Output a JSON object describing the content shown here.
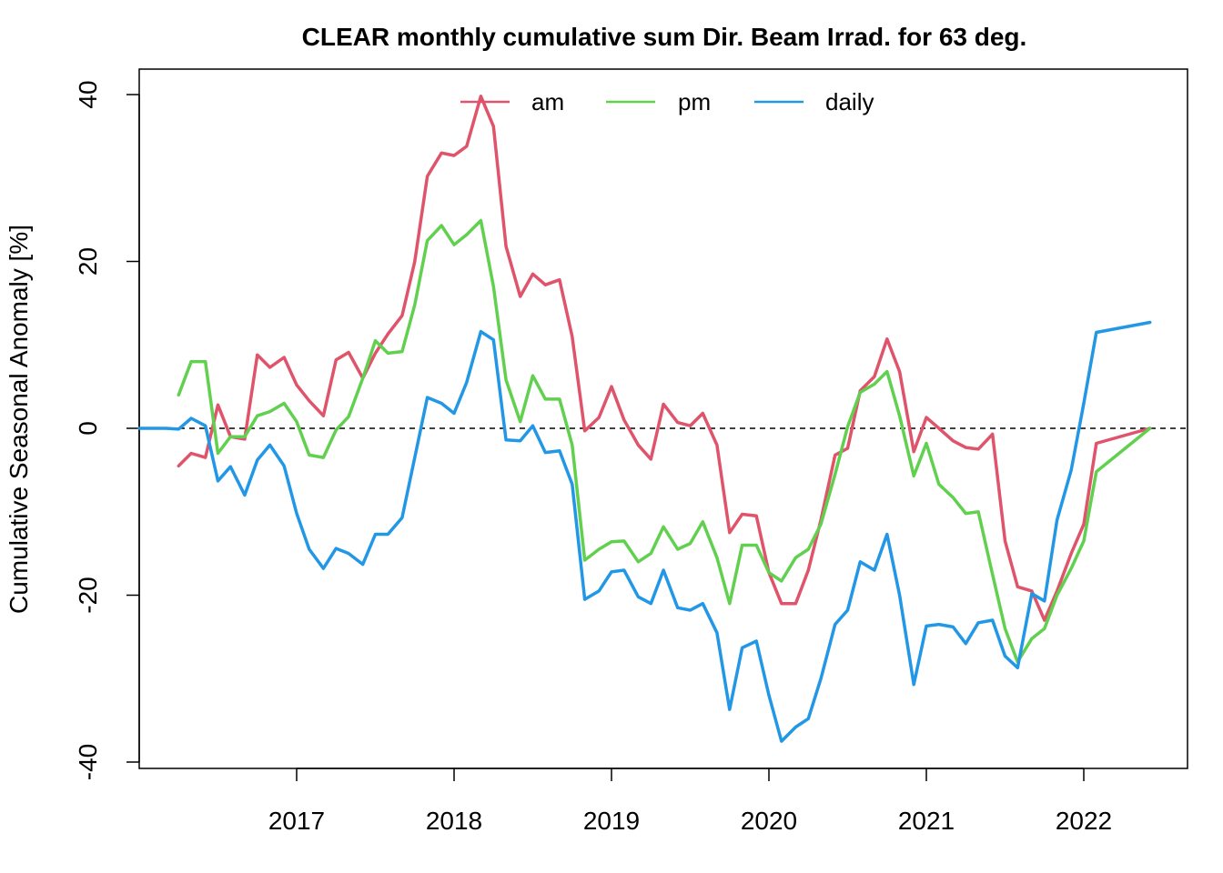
{
  "chart_data": {
    "type": "line",
    "title": "CLEAR monthly cumulative sum  Dir. Beam Irrad. for 63 deg.",
    "xlabel": "",
    "ylabel": "Cumulative Seasonal Anomaly [%]",
    "xlim": [
      2016.0,
      2022.67
    ],
    "ylim": [
      -40,
      40
    ],
    "x_ticks": [
      2017,
      2018,
      2019,
      2020,
      2021,
      2022
    ],
    "x_tick_labels": [
      "2017",
      "2018",
      "2019",
      "2020",
      "2021",
      "2022"
    ],
    "y_ticks": [
      -40,
      -20,
      0,
      20,
      40
    ],
    "y_tick_labels": [
      "-40",
      "-20",
      "0",
      "20",
      "40"
    ],
    "reference_line": {
      "y": 0,
      "style": "dashed"
    },
    "legend": {
      "position": "top",
      "orientation": "horizontal"
    },
    "series": [
      {
        "name": "am",
        "color": "#DF536B",
        "points": [
          [
            2016.25,
            -4.5
          ],
          [
            2016.33,
            -3.0
          ],
          [
            2016.42,
            -3.5
          ],
          [
            2016.5,
            2.8
          ],
          [
            2016.58,
            -1.0
          ],
          [
            2016.67,
            -1.3
          ],
          [
            2016.75,
            8.8
          ],
          [
            2016.83,
            7.3
          ],
          [
            2016.92,
            8.5
          ],
          [
            2017.0,
            5.2
          ],
          [
            2017.08,
            3.3
          ],
          [
            2017.17,
            1.5
          ],
          [
            2017.25,
            8.2
          ],
          [
            2017.33,
            9.1
          ],
          [
            2017.42,
            6.0
          ],
          [
            2017.5,
            9.0
          ],
          [
            2017.58,
            11.3
          ],
          [
            2017.67,
            13.5
          ],
          [
            2017.75,
            20.0
          ],
          [
            2017.83,
            30.2
          ],
          [
            2017.92,
            33.0
          ],
          [
            2018.0,
            32.7
          ],
          [
            2018.08,
            33.8
          ],
          [
            2018.17,
            39.8
          ],
          [
            2018.25,
            36.2
          ],
          [
            2018.33,
            21.8
          ],
          [
            2018.42,
            15.8
          ],
          [
            2018.5,
            18.5
          ],
          [
            2018.58,
            17.2
          ],
          [
            2018.67,
            17.8
          ],
          [
            2018.75,
            11.0
          ],
          [
            2018.83,
            -0.3
          ],
          [
            2018.92,
            1.3
          ],
          [
            2019.0,
            5.0
          ],
          [
            2019.08,
            1.0
          ],
          [
            2019.17,
            -2.0
          ],
          [
            2019.25,
            -3.7
          ],
          [
            2019.33,
            2.9
          ],
          [
            2019.42,
            0.7
          ],
          [
            2019.5,
            0.3
          ],
          [
            2019.58,
            1.8
          ],
          [
            2019.67,
            -2.0
          ],
          [
            2019.75,
            -12.5
          ],
          [
            2019.83,
            -10.3
          ],
          [
            2019.92,
            -10.5
          ],
          [
            2020.0,
            -17.3
          ],
          [
            2020.08,
            -21.0
          ],
          [
            2020.17,
            -21.0
          ],
          [
            2020.25,
            -17.0
          ],
          [
            2020.33,
            -11.0
          ],
          [
            2020.42,
            -3.2
          ],
          [
            2020.5,
            -2.4
          ],
          [
            2020.58,
            4.5
          ],
          [
            2020.67,
            6.2
          ],
          [
            2020.75,
            10.7
          ],
          [
            2020.83,
            6.8
          ],
          [
            2020.92,
            -2.8
          ],
          [
            2021.0,
            1.3
          ],
          [
            2021.08,
            0.0
          ],
          [
            2021.17,
            -1.5
          ],
          [
            2021.25,
            -2.3
          ],
          [
            2021.33,
            -2.5
          ],
          [
            2021.42,
            -0.7
          ],
          [
            2021.5,
            -13.5
          ],
          [
            2021.58,
            -19.0
          ],
          [
            2021.67,
            -19.5
          ],
          [
            2021.75,
            -23.0
          ],
          [
            2021.83,
            -19.5
          ],
          [
            2021.92,
            -15.0
          ],
          [
            2022.0,
            -11.5
          ],
          [
            2022.08,
            -1.8
          ],
          [
            2022.42,
            0.0
          ]
        ]
      },
      {
        "name": "pm",
        "color": "#61D04F",
        "points": [
          [
            2016.25,
            4.0
          ],
          [
            2016.33,
            8.0
          ],
          [
            2016.42,
            8.0
          ],
          [
            2016.5,
            -3.0
          ],
          [
            2016.58,
            -1.0
          ],
          [
            2016.67,
            -1.0
          ],
          [
            2016.75,
            1.5
          ],
          [
            2016.83,
            2.0
          ],
          [
            2016.92,
            3.0
          ],
          [
            2017.0,
            0.8
          ],
          [
            2017.08,
            -3.2
          ],
          [
            2017.17,
            -3.5
          ],
          [
            2017.25,
            -0.2
          ],
          [
            2017.33,
            1.4
          ],
          [
            2017.42,
            6.0
          ],
          [
            2017.5,
            10.5
          ],
          [
            2017.58,
            9.0
          ],
          [
            2017.67,
            9.2
          ],
          [
            2017.75,
            14.8
          ],
          [
            2017.83,
            22.5
          ],
          [
            2017.92,
            24.3
          ],
          [
            2018.0,
            22.0
          ],
          [
            2018.08,
            23.2
          ],
          [
            2018.17,
            24.9
          ],
          [
            2018.25,
            17.0
          ],
          [
            2018.33,
            5.8
          ],
          [
            2018.42,
            0.8
          ],
          [
            2018.5,
            6.3
          ],
          [
            2018.58,
            3.5
          ],
          [
            2018.67,
            3.5
          ],
          [
            2018.75,
            -2.0
          ],
          [
            2018.83,
            -15.8
          ],
          [
            2018.92,
            -14.5
          ],
          [
            2019.0,
            -13.6
          ],
          [
            2019.08,
            -13.5
          ],
          [
            2019.17,
            -16.0
          ],
          [
            2019.25,
            -15.0
          ],
          [
            2019.33,
            -11.8
          ],
          [
            2019.42,
            -14.5
          ],
          [
            2019.5,
            -13.8
          ],
          [
            2019.58,
            -11.2
          ],
          [
            2019.67,
            -15.5
          ],
          [
            2019.75,
            -21.0
          ],
          [
            2019.83,
            -14.0
          ],
          [
            2019.92,
            -14.0
          ],
          [
            2020.0,
            -17.3
          ],
          [
            2020.08,
            -18.3
          ],
          [
            2020.17,
            -15.5
          ],
          [
            2020.25,
            -14.5
          ],
          [
            2020.33,
            -11.5
          ],
          [
            2020.42,
            -5.5
          ],
          [
            2020.5,
            0.2
          ],
          [
            2020.58,
            4.3
          ],
          [
            2020.67,
            5.3
          ],
          [
            2020.75,
            6.8
          ],
          [
            2020.83,
            1.5
          ],
          [
            2020.92,
            -5.7
          ],
          [
            2021.0,
            -1.8
          ],
          [
            2021.08,
            -6.7
          ],
          [
            2021.17,
            -8.3
          ],
          [
            2021.25,
            -10.2
          ],
          [
            2021.33,
            -10.0
          ],
          [
            2021.42,
            -17.5
          ],
          [
            2021.5,
            -24.0
          ],
          [
            2021.58,
            -28.0
          ],
          [
            2021.67,
            -25.2
          ],
          [
            2021.75,
            -24.0
          ],
          [
            2021.83,
            -20.0
          ],
          [
            2021.92,
            -16.8
          ],
          [
            2022.0,
            -13.5
          ],
          [
            2022.08,
            -5.2
          ],
          [
            2022.42,
            0.0
          ]
        ]
      },
      {
        "name": "daily",
        "color": "#2297E6",
        "points": [
          [
            2016.0,
            0.0
          ],
          [
            2016.08,
            0.0
          ],
          [
            2016.17,
            0.0
          ],
          [
            2016.25,
            -0.1
          ],
          [
            2016.33,
            1.2
          ],
          [
            2016.42,
            0.3
          ],
          [
            2016.5,
            -6.3
          ],
          [
            2016.58,
            -4.6
          ],
          [
            2016.67,
            -8.0
          ],
          [
            2016.75,
            -3.8
          ],
          [
            2016.83,
            -2.0
          ],
          [
            2016.92,
            -4.5
          ],
          [
            2017.0,
            -10.2
          ],
          [
            2017.08,
            -14.5
          ],
          [
            2017.17,
            -16.8
          ],
          [
            2017.25,
            -14.4
          ],
          [
            2017.33,
            -15.0
          ],
          [
            2017.42,
            -16.3
          ],
          [
            2017.5,
            -12.7
          ],
          [
            2017.58,
            -12.7
          ],
          [
            2017.67,
            -10.7
          ],
          [
            2017.75,
            -3.5
          ],
          [
            2017.83,
            3.7
          ],
          [
            2017.92,
            3.0
          ],
          [
            2018.0,
            1.8
          ],
          [
            2018.08,
            5.5
          ],
          [
            2018.17,
            11.6
          ],
          [
            2018.25,
            10.6
          ],
          [
            2018.33,
            -1.4
          ],
          [
            2018.42,
            -1.5
          ],
          [
            2018.5,
            0.3
          ],
          [
            2018.58,
            -2.9
          ],
          [
            2018.67,
            -2.7
          ],
          [
            2018.75,
            -6.7
          ],
          [
            2018.83,
            -20.5
          ],
          [
            2018.92,
            -19.5
          ],
          [
            2019.0,
            -17.2
          ],
          [
            2019.08,
            -17.0
          ],
          [
            2019.17,
            -20.2
          ],
          [
            2019.25,
            -21.0
          ],
          [
            2019.33,
            -17.0
          ],
          [
            2019.42,
            -21.5
          ],
          [
            2019.5,
            -21.8
          ],
          [
            2019.58,
            -21.0
          ],
          [
            2019.67,
            -24.5
          ],
          [
            2019.75,
            -33.7
          ],
          [
            2019.83,
            -26.3
          ],
          [
            2019.92,
            -25.5
          ],
          [
            2020.0,
            -32.0
          ],
          [
            2020.08,
            -37.5
          ],
          [
            2020.17,
            -35.8
          ],
          [
            2020.25,
            -34.8
          ],
          [
            2020.33,
            -30.0
          ],
          [
            2020.42,
            -23.5
          ],
          [
            2020.5,
            -21.8
          ],
          [
            2020.58,
            -16.0
          ],
          [
            2020.67,
            -17.0
          ],
          [
            2020.75,
            -12.7
          ],
          [
            2020.83,
            -20.0
          ],
          [
            2020.92,
            -30.7
          ],
          [
            2021.0,
            -23.7
          ],
          [
            2021.08,
            -23.5
          ],
          [
            2021.17,
            -23.8
          ],
          [
            2021.25,
            -25.8
          ],
          [
            2021.33,
            -23.3
          ],
          [
            2021.42,
            -23.0
          ],
          [
            2021.5,
            -27.3
          ],
          [
            2021.58,
            -28.7
          ],
          [
            2021.67,
            -19.8
          ],
          [
            2021.75,
            -20.7
          ],
          [
            2021.83,
            -11.0
          ],
          [
            2021.92,
            -5.0
          ],
          [
            2022.0,
            3.0
          ],
          [
            2022.08,
            11.5
          ],
          [
            2022.42,
            12.7
          ]
        ]
      }
    ]
  }
}
